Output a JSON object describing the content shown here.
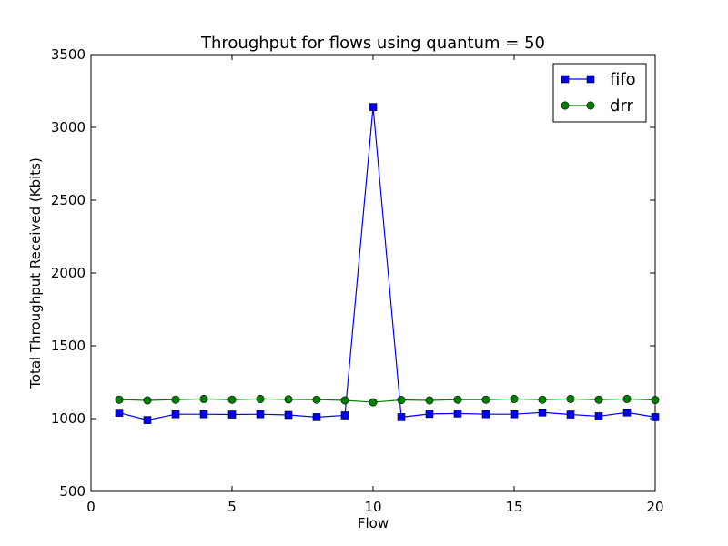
{
  "chart_data": {
    "type": "line",
    "title": "Throughput for flows using quantum = 50",
    "xlabel": "Flow",
    "ylabel": "Total Throughput Received (Kbits)",
    "xlim": [
      0,
      20
    ],
    "ylim": [
      500,
      3500
    ],
    "xticks": [
      0,
      5,
      10,
      15,
      20
    ],
    "yticks": [
      500,
      1000,
      1500,
      2000,
      2500,
      3000,
      3500
    ],
    "grid": false,
    "legend_position": "top-right",
    "x": [
      1,
      2,
      3,
      4,
      5,
      6,
      7,
      8,
      9,
      10,
      11,
      12,
      13,
      14,
      15,
      16,
      17,
      18,
      19,
      20
    ],
    "series": [
      {
        "name": "fifo",
        "marker": "square",
        "color": "#0000ff",
        "values": [
          1040,
          990,
          1030,
          1030,
          1028,
          1030,
          1025,
          1010,
          1022,
          3140,
          1010,
          1032,
          1035,
          1030,
          1030,
          1042,
          1028,
          1016,
          1042,
          1010
        ]
      },
      {
        "name": "drr",
        "marker": "circle",
        "color": "#008000",
        "values": [
          1130,
          1125,
          1130,
          1135,
          1130,
          1135,
          1132,
          1130,
          1125,
          1112,
          1128,
          1125,
          1130,
          1130,
          1135,
          1130,
          1135,
          1130,
          1135,
          1128
        ]
      }
    ]
  }
}
